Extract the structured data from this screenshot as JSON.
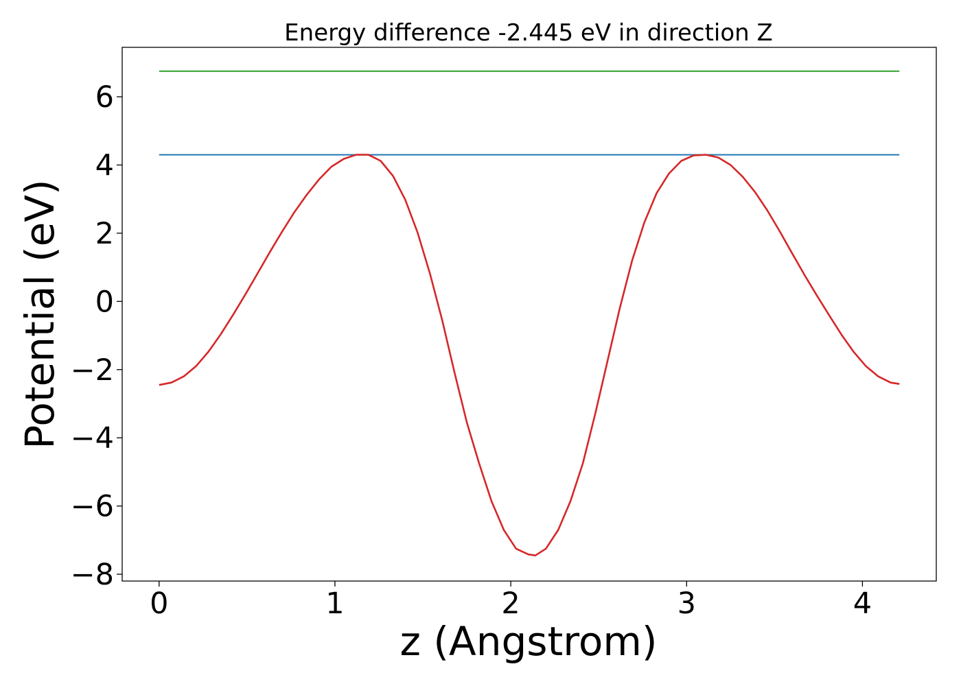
{
  "chart_data": {
    "type": "line",
    "title": "Energy difference -2.445 eV in direction Z",
    "xlabel": "z (Angstrom)",
    "ylabel": "Potential (eV)",
    "xlim": [
      -0.21,
      4.42
    ],
    "ylim": [
      -8.2,
      7.45
    ],
    "xticks": [
      0,
      1,
      2,
      3,
      4
    ],
    "xtick_labels": [
      "0",
      "1",
      "2",
      "3",
      "4"
    ],
    "yticks": [
      -8,
      -6,
      -4,
      -2,
      0,
      2,
      4,
      6
    ],
    "ytick_labels": [
      "−8",
      "−6",
      "−4",
      "−2",
      "0",
      "2",
      "4",
      "6"
    ],
    "grid": false,
    "series": [
      {
        "color": "#2ca02c",
        "x": [
          0,
          4.21
        ],
        "y": [
          6.75,
          6.75
        ]
      },
      {
        "color": "#1f77b4",
        "x": [
          0,
          4.21
        ],
        "y": [
          4.3,
          4.3
        ]
      },
      {
        "color": "#d62728",
        "x": [
          0,
          0.07,
          0.14,
          0.21,
          0.28,
          0.35,
          0.42,
          0.49,
          0.56,
          0.63,
          0.7,
          0.77,
          0.84,
          0.91,
          0.98,
          1.05,
          1.12,
          1.19,
          1.26,
          1.33,
          1.4,
          1.47,
          1.54,
          1.61,
          1.68,
          1.75,
          1.82,
          1.89,
          1.96,
          2.03,
          2.1,
          2.14,
          2.2,
          2.27,
          2.34,
          2.41,
          2.48,
          2.55,
          2.62,
          2.69,
          2.76,
          2.83,
          2.9,
          2.97,
          3.04,
          3.11,
          3.18,
          3.25,
          3.32,
          3.39,
          3.46,
          3.53,
          3.6,
          3.67,
          3.74,
          3.81,
          3.88,
          3.95,
          4.02,
          4.09,
          4.16,
          4.21
        ],
        "y": [
          -2.45,
          -2.38,
          -2.2,
          -1.9,
          -1.48,
          -0.97,
          -0.4,
          0.2,
          0.82,
          1.45,
          2.05,
          2.62,
          3.13,
          3.58,
          3.95,
          4.18,
          4.3,
          4.3,
          4.12,
          3.68,
          2.98,
          2.02,
          0.82,
          -0.55,
          -2.08,
          -3.55,
          -4.75,
          -5.85,
          -6.7,
          -7.25,
          -7.42,
          -7.45,
          -7.25,
          -6.7,
          -5.85,
          -4.75,
          -3.3,
          -1.75,
          -0.2,
          1.2,
          2.32,
          3.18,
          3.75,
          4.12,
          4.28,
          4.3,
          4.22,
          4.0,
          3.65,
          3.2,
          2.66,
          2.05,
          1.41,
          0.78,
          0.18,
          -0.4,
          -0.97,
          -1.48,
          -1.9,
          -2.2,
          -2.38,
          -2.42
        ]
      }
    ]
  }
}
